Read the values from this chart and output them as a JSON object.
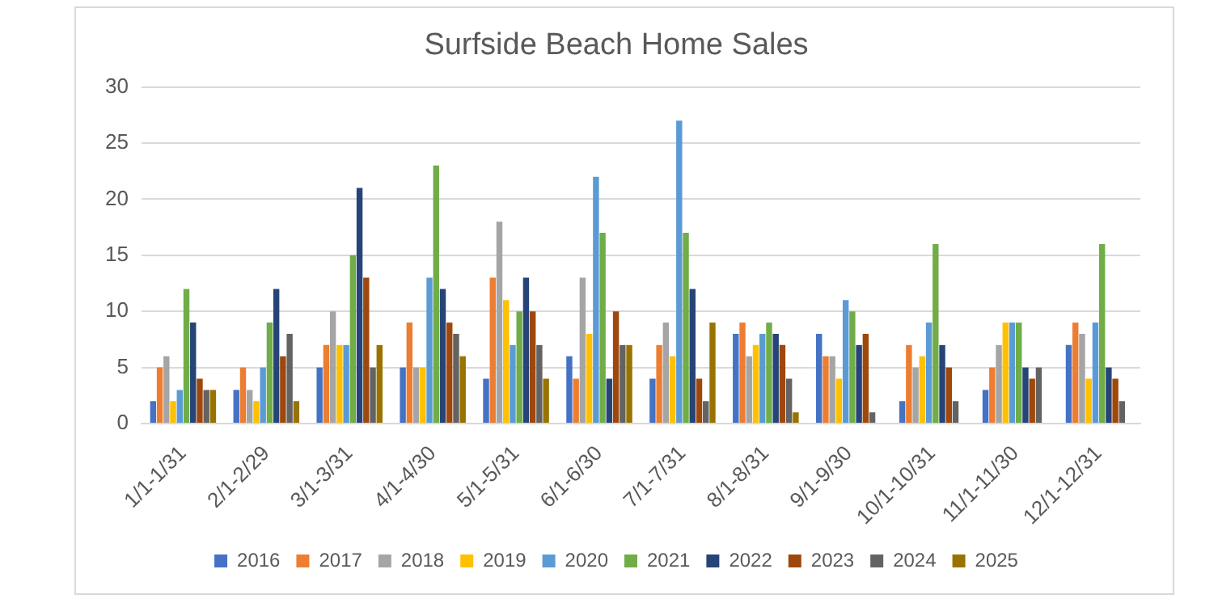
{
  "chart_data": {
    "type": "bar",
    "title": "Surfside Beach Home Sales",
    "categories": [
      "1/1-1/31",
      "2/1-2/29",
      "3/1-3/31",
      "4/1-4/30",
      "5/1-5/31",
      "6/1-6/30",
      "7/1-7/31",
      "8/1-8/31",
      "9/1-9/30",
      "10/1-10/31",
      "11/1-11/30",
      "12/1-12/31"
    ],
    "series": [
      {
        "name": "2016",
        "color": "#4472c4",
        "values": [
          2,
          3,
          5,
          5,
          4,
          6,
          4,
          8,
          8,
          2,
          3,
          7
        ]
      },
      {
        "name": "2017",
        "color": "#ed7d31",
        "values": [
          5,
          5,
          7,
          9,
          13,
          4,
          7,
          9,
          6,
          7,
          5,
          9
        ]
      },
      {
        "name": "2018",
        "color": "#a5a5a5",
        "values": [
          6,
          3,
          10,
          5,
          18,
          13,
          9,
          6,
          6,
          5,
          7,
          8
        ]
      },
      {
        "name": "2019",
        "color": "#ffc000",
        "values": [
          2,
          2,
          7,
          5,
          11,
          8,
          6,
          7,
          4,
          6,
          9,
          4
        ]
      },
      {
        "name": "2020",
        "color": "#5b9bd5",
        "values": [
          3,
          5,
          7,
          13,
          7,
          22,
          27,
          8,
          11,
          9,
          9,
          9
        ]
      },
      {
        "name": "2021",
        "color": "#70ad47",
        "values": [
          12,
          9,
          15,
          23,
          10,
          17,
          17,
          9,
          10,
          16,
          9,
          16
        ]
      },
      {
        "name": "2022",
        "color": "#264478",
        "values": [
          9,
          12,
          21,
          12,
          13,
          4,
          12,
          8,
          7,
          7,
          5,
          5
        ]
      },
      {
        "name": "2023",
        "color": "#9e480e",
        "values": [
          4,
          6,
          13,
          9,
          10,
          10,
          4,
          7,
          8,
          5,
          4,
          4
        ]
      },
      {
        "name": "2024",
        "color": "#636363",
        "values": [
          3,
          8,
          5,
          8,
          7,
          7,
          2,
          4,
          1,
          2,
          5,
          2
        ]
      },
      {
        "name": "2025",
        "color": "#997300",
        "values": [
          3,
          2,
          7,
          6,
          4,
          7,
          9,
          1,
          null,
          null,
          null,
          null
        ]
      }
    ],
    "ylim": [
      0,
      30
    ],
    "yticks": [
      0,
      5,
      10,
      15,
      20,
      25,
      30
    ],
    "grid": "y",
    "legend": "bottom"
  }
}
